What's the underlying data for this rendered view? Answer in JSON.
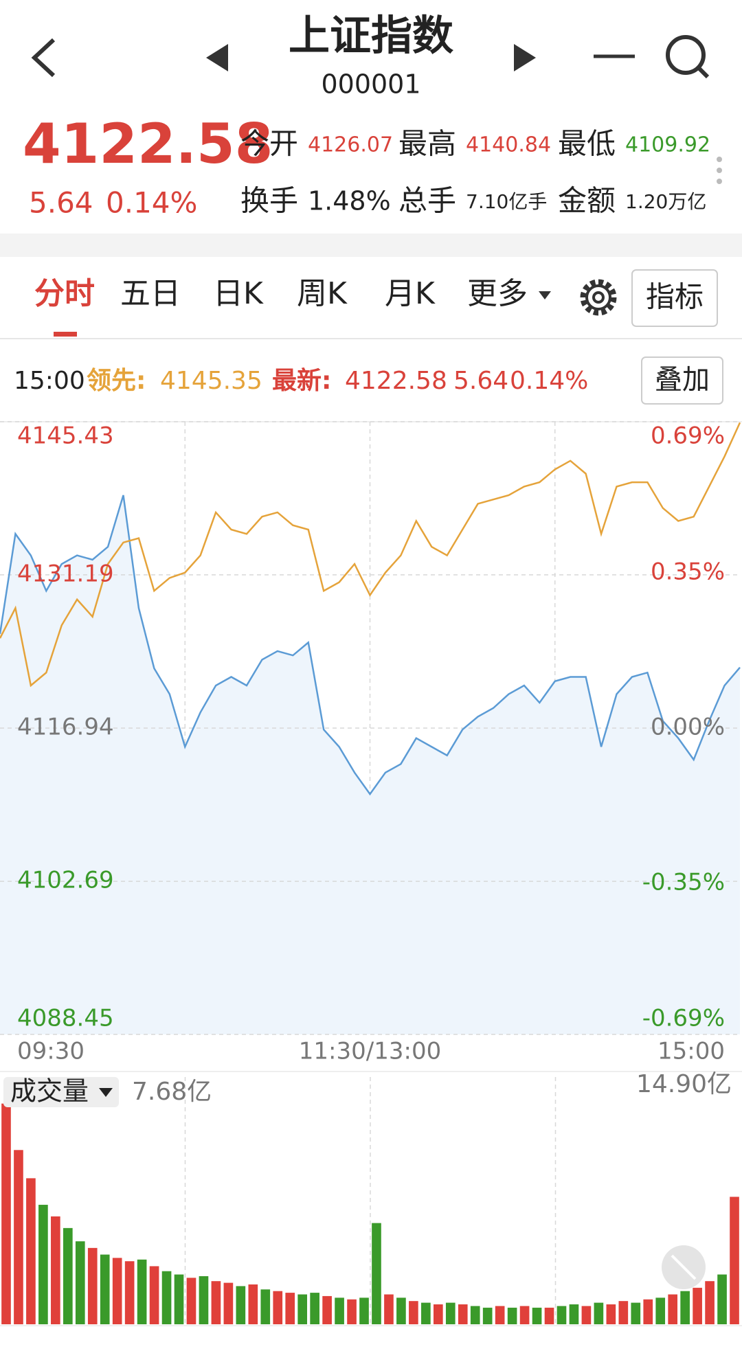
{
  "header": {
    "title": "上证指数",
    "code": "000001"
  },
  "quote": {
    "price": "4122.58",
    "change": "5.64",
    "change_pct": "0.14%",
    "stats": [
      {
        "label": "今开",
        "value": "4126.07"
      },
      {
        "label": "最高",
        "value": "4140.84"
      },
      {
        "label": "最低",
        "value": "4109.92"
      },
      {
        "label": "换手",
        "value": "1.48%"
      },
      {
        "label": "总手",
        "value": "7.10亿手"
      },
      {
        "label": "金额",
        "value": "1.20万亿"
      }
    ]
  },
  "tabs": [
    "分时",
    "五日",
    "日K",
    "周K",
    "月K",
    "更多"
  ],
  "indicator_button": "指标",
  "info": {
    "time": "15:00",
    "lead_label": "领先:",
    "lead_value": "4145.35",
    "latest_label": "最新:",
    "latest_value": "4122.58",
    "latest_change": "5.64",
    "latest_pct": "0.14%"
  },
  "overlay_button": "叠加",
  "chart_data": [
    {
      "type": "line",
      "x": [
        0,
        5,
        10,
        15,
        20,
        25,
        30,
        35,
        40,
        45,
        50,
        55,
        60,
        65,
        70,
        75,
        80,
        85,
        90,
        95,
        100,
        105,
        110,
        115,
        120,
        125,
        130,
        135,
        140,
        145,
        150,
        155,
        160,
        165,
        170,
        175,
        180,
        185,
        190,
        195,
        200,
        205,
        210,
        215,
        220,
        225,
        230,
        235,
        240
      ],
      "xlim": [
        0,
        240
      ],
      "xticks": [
        {
          "value": 0,
          "label": "09:30"
        },
        {
          "value": 120,
          "label": "11:30/13:00"
        },
        {
          "value": 240,
          "label": "15:00"
        }
      ],
      "ylim": [
        4088.45,
        4145.43
      ],
      "yticks": [
        4145.43,
        4131.19,
        4116.94,
        4102.69,
        4088.45
      ],
      "y2lim": [
        -0.69,
        0.69
      ],
      "y2ticks": [
        {
          "value": 0.69,
          "label": "0.69%"
        },
        {
          "value": 0.35,
          "label": "0.35%"
        },
        {
          "value": 0,
          "label": "0.00%"
        },
        {
          "value": -0.35,
          "label": "-0.35%"
        },
        {
          "value": -0.69,
          "label": "-0.69%"
        }
      ],
      "grid": true,
      "series": [
        {
          "color": "#5b9bd5",
          "fill": "#eef5fc",
          "values": [
            4125.7,
            4135.0,
            4133.0,
            4129.7,
            4132.2,
            4133.0,
            4132.6,
            4133.8,
            4138.6,
            4128.1,
            4122.5,
            4120.1,
            4115.2,
            4118.4,
            4120.9,
            4121.7,
            4120.9,
            4123.3,
            4124.1,
            4123.7,
            4124.9,
            4116.8,
            4115.2,
            4112.8,
            4110.8,
            4112.8,
            4113.6,
            4116.0,
            4115.2,
            4114.4,
            4116.8,
            4118.0,
            4118.8,
            4120.1,
            4120.9,
            4119.3,
            4121.3,
            4121.7,
            4121.7,
            4115.2,
            4120.1,
            4121.7,
            4122.1,
            4117.6,
            4116.0,
            4114.0,
            4117.6,
            4120.9,
            4122.58
          ]
        },
        {
          "color": "#e5a33a",
          "values": [
            4125.3,
            4128.1,
            4120.9,
            4122.1,
            4126.5,
            4128.9,
            4127.3,
            4132.2,
            4134.2,
            4134.6,
            4129.7,
            4130.9,
            4131.4,
            4133.0,
            4137.0,
            4135.4,
            4135.0,
            4136.6,
            4137.0,
            4135.8,
            4135.4,
            4129.7,
            4130.5,
            4132.2,
            4129.3,
            4131.4,
            4133.0,
            4136.2,
            4133.8,
            4133.0,
            4135.4,
            4137.8,
            4138.2,
            4138.6,
            4139.4,
            4139.8,
            4141.0,
            4141.8,
            4140.6,
            4135.0,
            4139.4,
            4139.8,
            4139.8,
            4137.4,
            4136.2,
            4136.6,
            4139.4,
            4142.2,
            4145.35
          ]
        }
      ]
    },
    {
      "type": "bar",
      "title": "成交量",
      "current_label": "7.68亿",
      "ylim": [
        0,
        14.9
      ],
      "yticks": [
        {
          "value": 14.9,
          "label": "14.90亿"
        }
      ],
      "up_color": "#e0403a",
      "down_color": "#3a9a2a",
      "values": [
        13.3,
        10.5,
        8.8,
        7.2,
        6.5,
        5.8,
        5.0,
        4.6,
        4.2,
        4.0,
        3.8,
        3.9,
        3.5,
        3.2,
        3.0,
        2.8,
        2.9,
        2.6,
        2.5,
        2.3,
        2.4,
        2.1,
        2.0,
        1.9,
        1.8,
        1.9,
        1.7,
        1.6,
        1.5,
        1.6,
        6.1,
        1.8,
        1.6,
        1.4,
        1.3,
        1.2,
        1.3,
        1.2,
        1.1,
        1.0,
        1.1,
        1.0,
        1.1,
        1.0,
        1.0,
        1.1,
        1.2,
        1.1,
        1.3,
        1.2,
        1.4,
        1.3,
        1.5,
        1.6,
        1.8,
        2.0,
        2.2,
        2.6,
        3.0,
        7.68
      ],
      "directions": [
        "up",
        "up",
        "up",
        "down",
        "up",
        "down",
        "down",
        "up",
        "down",
        "up",
        "up",
        "down",
        "up",
        "down",
        "down",
        "up",
        "down",
        "up",
        "up",
        "down",
        "up",
        "down",
        "up",
        "up",
        "down",
        "down",
        "up",
        "down",
        "up",
        "down",
        "down",
        "up",
        "down",
        "up",
        "down",
        "up",
        "down",
        "up",
        "down",
        "down",
        "up",
        "down",
        "up",
        "down",
        "up",
        "down",
        "down",
        "up",
        "down",
        "up",
        "up",
        "down",
        "up",
        "down",
        "up",
        "down",
        "up",
        "up",
        "down",
        "up"
      ]
    }
  ]
}
